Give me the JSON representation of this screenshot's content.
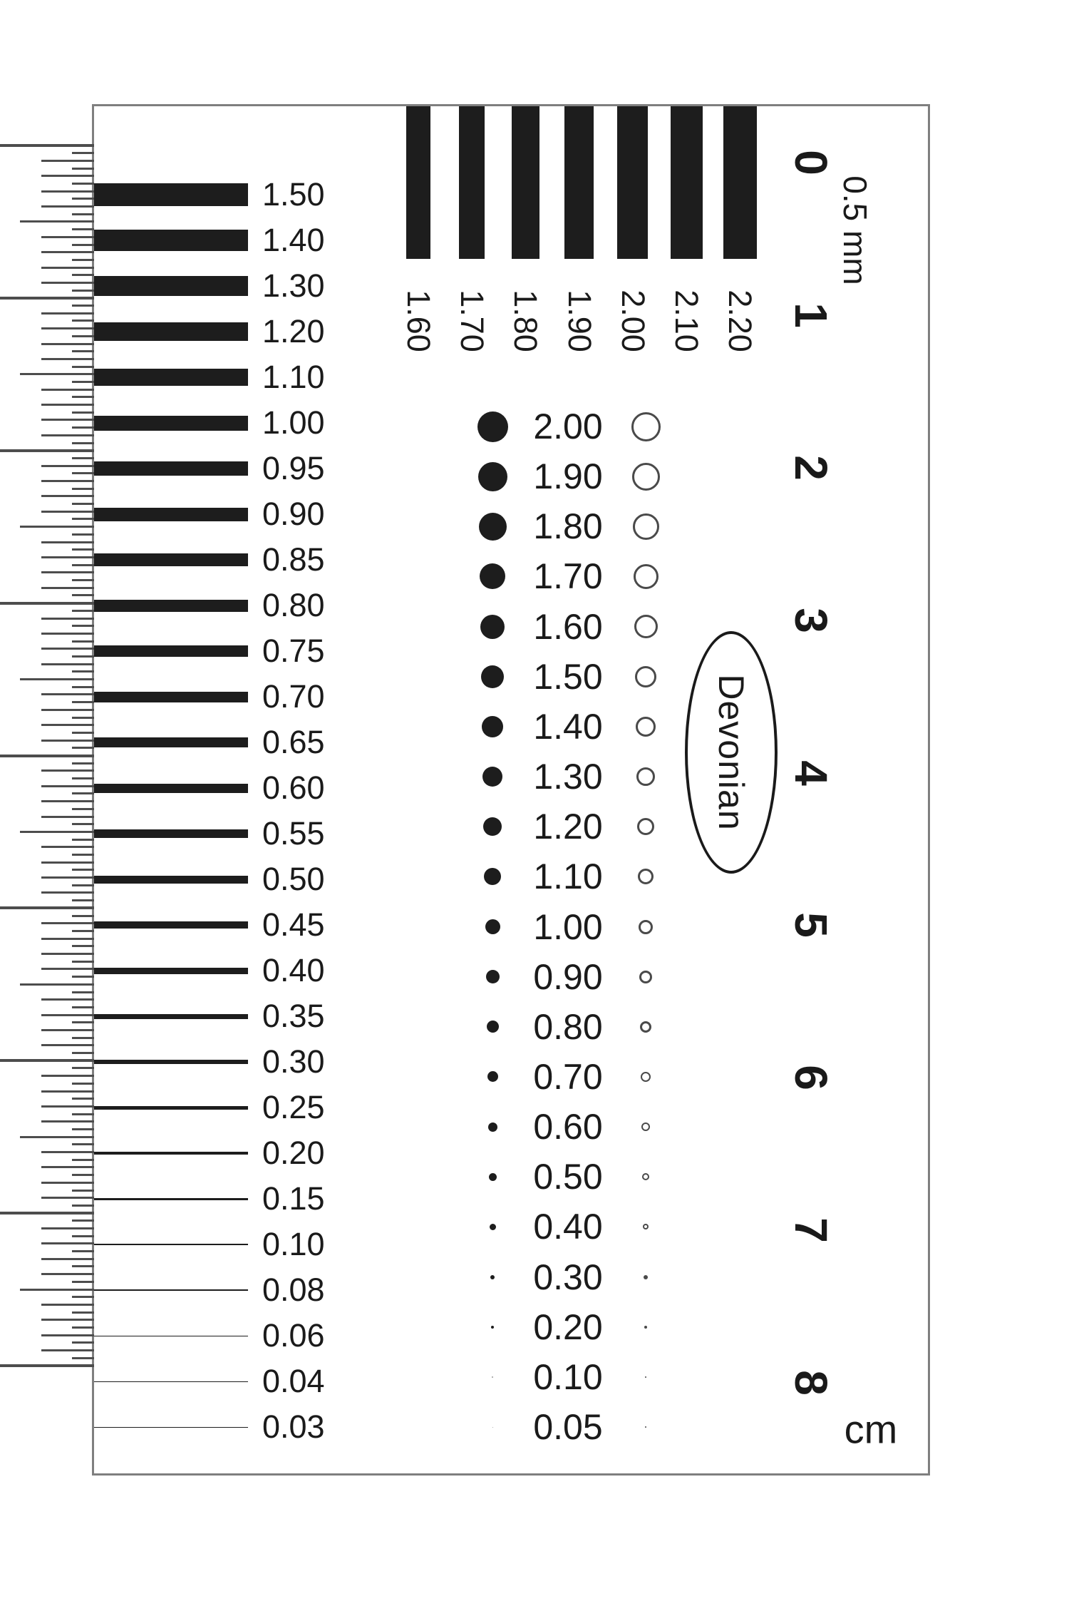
{
  "left_scale": {
    "values": [
      "1.50",
      "1.40",
      "1.30",
      "1.20",
      "1.10",
      "1.00",
      "0.95",
      "0.90",
      "0.85",
      "0.80",
      "0.75",
      "0.70",
      "0.65",
      "0.60",
      "0.55",
      "0.50",
      "0.45",
      "0.40",
      "0.35",
      "0.30",
      "0.25",
      "0.20",
      "0.15",
      "0.10",
      "0.08",
      "0.06",
      "0.04",
      "0.03"
    ]
  },
  "top_scale": {
    "values": [
      "1.60",
      "1.70",
      "1.80",
      "1.90",
      "2.00",
      "2.10",
      "2.20"
    ]
  },
  "dot_scale": {
    "values": [
      "2.00",
      "1.90",
      "1.80",
      "1.70",
      "1.60",
      "1.50",
      "1.40",
      "1.30",
      "1.20",
      "1.10",
      "1.00",
      "0.90",
      "0.80",
      "0.70",
      "0.60",
      "0.50",
      "0.40",
      "0.30",
      "0.20",
      "0.10",
      "0.05"
    ]
  },
  "oval": {
    "label": "Devonian"
  },
  "ruler": {
    "numbers": [
      "0",
      "1",
      "2",
      "3",
      "4",
      "5",
      "6",
      "7",
      "8"
    ],
    "division_label": "0.5 mm",
    "unit_label": "cm"
  },
  "colors": {
    "ink": "#1d1d1d",
    "tick": "#4d4d4d",
    "border": "#7f7f7f",
    "background": "#ffffff"
  }
}
